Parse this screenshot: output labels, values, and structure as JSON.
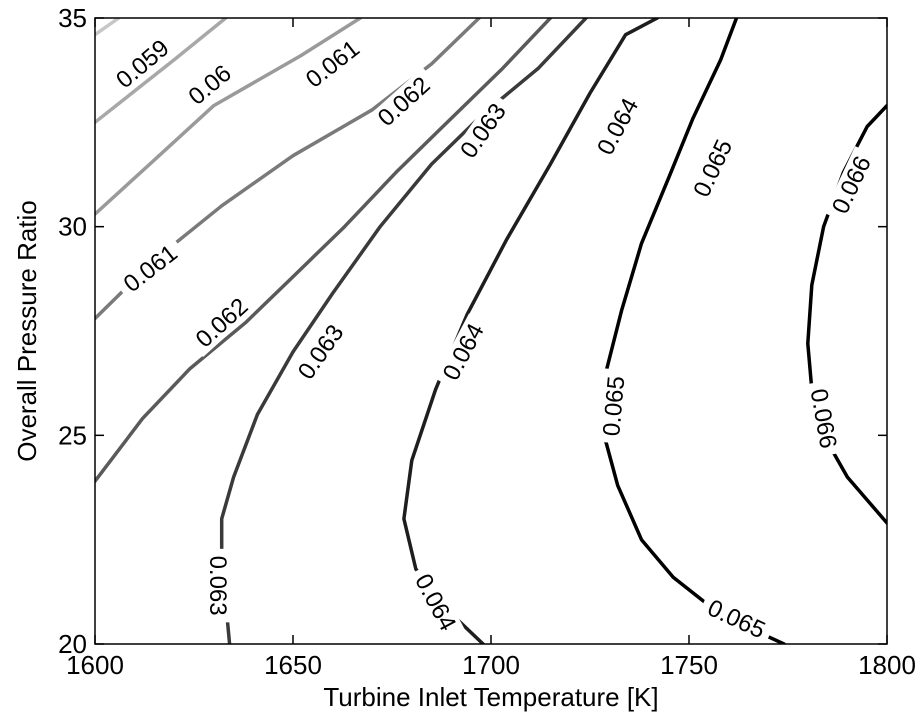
{
  "chart_data": {
    "type": "contour",
    "title": "",
    "xlabel": "Turbine Inlet Temperature [K]",
    "ylabel": "Overall Pressure Ratio",
    "xlim": [
      1600,
      1800
    ],
    "ylim": [
      20,
      35
    ],
    "xticks": [
      "1600",
      "1650",
      "1700",
      "1750",
      "1800"
    ],
    "yticks": [
      "20",
      "25",
      "30",
      "35"
    ],
    "grid": false,
    "legend": "none",
    "levels": [
      {
        "name": "0.059",
        "color": "#c7c7c7",
        "points": [
          [
            1600,
            34.6
          ],
          [
            1606,
            35
          ]
        ],
        "labels": [
          {
            "text": "0.059",
            "at": [
              1612,
              33.9
            ],
            "angle": -40
          }
        ]
      },
      {
        "name": "0.06",
        "color": "#a8a8a8",
        "points": [
          [
            1600,
            32.5
          ],
          [
            1620,
            34.0
          ],
          [
            1633,
            35
          ]
        ],
        "labels": [
          {
            "text": "0.06",
            "at": [
              1629,
              33.4
            ],
            "angle": -40
          }
        ]
      },
      {
        "name": "0.061",
        "color": "#9a9a9a",
        "points": [
          [
            1600,
            30.3
          ],
          [
            1615,
            31.6
          ],
          [
            1630,
            32.9
          ],
          [
            1652,
            34.1
          ],
          [
            1667,
            35
          ]
        ],
        "labels": [
          {
            "text": "0.061",
            "at": [
              1614,
              29.0
            ],
            "angle": -38
          },
          {
            "text": "0.061",
            "at": [
              1660,
              33.9
            ],
            "angle": -38
          }
        ]
      },
      {
        "name": "0.062",
        "color": "#7a7a7a",
        "points": [
          [
            1600,
            27.8
          ],
          [
            1615,
            29.2
          ],
          [
            1632,
            30.5
          ],
          [
            1650,
            31.7
          ],
          [
            1670,
            32.8
          ],
          [
            1685,
            33.9
          ],
          [
            1697,
            35
          ]
        ],
        "labels": [
          {
            "text": "0.062",
            "at": [
              1632,
              27.7
            ],
            "angle": -42
          },
          {
            "text": "0.062",
            "at": [
              1678,
              33.0
            ],
            "angle": -42
          }
        ]
      },
      {
        "name": "0.063",
        "color": "#5a5a5a",
        "points": [
          [
            1600,
            23.9
          ],
          [
            1612,
            25.4
          ],
          [
            1624,
            26.6
          ],
          [
            1638,
            27.7
          ],
          [
            1650,
            28.8
          ],
          [
            1663,
            30.0
          ],
          [
            1676,
            31.3
          ],
          [
            1690,
            32.6
          ],
          [
            1703,
            33.8
          ],
          [
            1715,
            35
          ]
        ],
        "labels": [
          {
            "text": "0.063",
            "at": [
              1657,
              27.0
            ],
            "angle": -55
          },
          {
            "text": "0.063",
            "at": [
              1698,
              32.3
            ],
            "angle": -55
          },
          {
            "text": "0.063",
            "at": [
              1631,
              21.4
            ],
            "angle": 90
          }
        ]
      },
      {
        "name": "0.064",
        "color": "#3a3a3a",
        "points": [
          [
            1634,
            20
          ],
          [
            1633,
            21
          ],
          [
            1632,
            22
          ],
          [
            1632,
            23
          ],
          [
            1635,
            24
          ],
          [
            1641,
            25.5
          ],
          [
            1650,
            27
          ],
          [
            1660,
            28.4
          ],
          [
            1672,
            30
          ],
          [
            1685,
            31.5
          ],
          [
            1698,
            32.7
          ],
          [
            1712,
            33.8
          ],
          [
            1724,
            35
          ]
        ],
        "labels": [
          {
            "text": "0.064",
            "at": [
              1693,
              27.0
            ],
            "angle": -62
          },
          {
            "text": "0.064",
            "at": [
              1732,
              32.4
            ],
            "angle": -62
          },
          {
            "text": "0.064",
            "at": [
              1686,
              21.0
            ],
            "angle": 62
          }
        ]
      },
      {
        "name": "0.065",
        "color": "#1e1e1e",
        "points": [
          [
            1698,
            20
          ],
          [
            1688,
            20.9
          ],
          [
            1681,
            21.8
          ],
          [
            1678,
            23
          ],
          [
            1680,
            24.4
          ],
          [
            1686,
            26.1
          ],
          [
            1694,
            27.9
          ],
          [
            1704,
            29.7
          ],
          [
            1715,
            31.5
          ],
          [
            1725,
            33.2
          ],
          [
            1734,
            34.6
          ],
          [
            1742,
            35
          ]
        ],
        "labels": [
          {
            "text": "0.065",
            "at": [
              1756,
              31.4
            ],
            "angle": -65
          },
          {
            "text": "0.065",
            "at": [
              1731,
              25.7
            ],
            "angle": -85
          },
          {
            "text": "0.065",
            "at": [
              1762,
              20.6
            ],
            "angle": 25
          }
        ]
      },
      {
        "name": "0.066",
        "color": "#000000",
        "points": [
          [
            1774,
            20
          ],
          [
            1758,
            20.7
          ],
          [
            1746,
            21.6
          ],
          [
            1738,
            22.5
          ],
          [
            1732,
            23.8
          ],
          [
            1728,
            25.2
          ],
          [
            1729,
            26.5
          ],
          [
            1733,
            28
          ],
          [
            1738,
            29.6
          ],
          [
            1745,
            31.2
          ],
          [
            1751,
            32.6
          ],
          [
            1758,
            34
          ],
          [
            1762,
            35
          ]
        ],
        "labels": [
          {
            "text": "0.066",
            "at": [
              1791,
              31.0
            ],
            "angle": -65
          },
          {
            "text": "0.066",
            "at": [
              1784,
              25.4
            ],
            "angle": 80
          }
        ]
      },
      {
        "name": "0.066-inner",
        "color": "#000000",
        "points": [
          [
            1800,
            22.9
          ],
          [
            1790,
            24.0
          ],
          [
            1784,
            25.0
          ],
          [
            1781,
            26.1
          ],
          [
            1780,
            27.2
          ],
          [
            1781,
            28.6
          ],
          [
            1784,
            30.0
          ],
          [
            1789,
            31.3
          ],
          [
            1795,
            32.4
          ],
          [
            1800,
            32.9
          ]
        ],
        "labels": []
      }
    ]
  }
}
